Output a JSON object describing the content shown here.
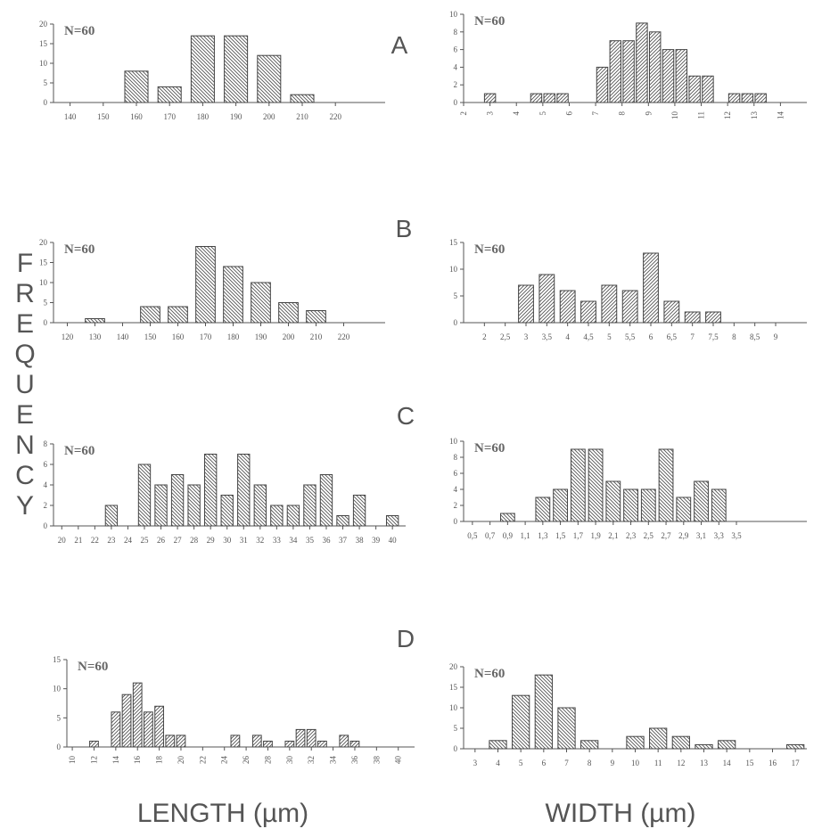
{
  "figure": {
    "y_axis_title": "FREQUENCY",
    "x_axis_title_left": "LENGTH (µm)",
    "x_axis_title_right": "WIDTH (µm)",
    "panel_letters": [
      "A",
      "B",
      "C",
      "D"
    ]
  },
  "chart_data": [
    {
      "id": "A-length",
      "type": "bar",
      "n_label": "N=60",
      "ylim": [
        0,
        20
      ],
      "yticks": [
        "0",
        "5",
        "10",
        "15",
        "20"
      ],
      "xlim": [
        135,
        235
      ],
      "xticks": [
        {
          "v": 140,
          "l": "140"
        },
        {
          "v": 150,
          "l": "150"
        },
        {
          "v": 160,
          "l": "160"
        },
        {
          "v": 170,
          "l": "170"
        },
        {
          "v": 180,
          "l": "180"
        },
        {
          "v": 190,
          "l": "190"
        },
        {
          "v": 200,
          "l": "200"
        },
        {
          "v": 210,
          "l": "210"
        },
        {
          "v": 220,
          "l": "220"
        }
      ],
      "rotate_xticks": false,
      "hatch": "\\",
      "bars": [
        {
          "x": 160,
          "y": 8
        },
        {
          "x": 170,
          "y": 4
        },
        {
          "x": 180,
          "y": 17
        },
        {
          "x": 190,
          "y": 17
        },
        {
          "x": 200,
          "y": 12
        },
        {
          "x": 210,
          "y": 2
        }
      ],
      "bar_width": 7
    },
    {
      "id": "A-width",
      "type": "bar",
      "n_label": "N=60",
      "ylim": [
        0,
        10
      ],
      "yticks": [
        "0",
        "2",
        "4",
        "6",
        "8",
        "10"
      ],
      "xlim": [
        2,
        15
      ],
      "xticks": [
        {
          "v": 2,
          "l": "2"
        },
        {
          "v": 3,
          "l": "3"
        },
        {
          "v": 4,
          "l": "4"
        },
        {
          "v": 5,
          "l": "5"
        },
        {
          "v": 6,
          "l": "6"
        },
        {
          "v": 7,
          "l": "7"
        },
        {
          "v": 8,
          "l": "8"
        },
        {
          "v": 9,
          "l": "9"
        },
        {
          "v": 10,
          "l": "10"
        },
        {
          "v": 11,
          "l": "11"
        },
        {
          "v": 12,
          "l": "12"
        },
        {
          "v": 13,
          "l": "13"
        },
        {
          "v": 14,
          "l": "14"
        }
      ],
      "rotate_xticks": true,
      "hatch": "/",
      "bars": [
        {
          "x": 3,
          "y": 1
        },
        {
          "x": 4.75,
          "y": 1
        },
        {
          "x": 5.25,
          "y": 1
        },
        {
          "x": 5.75,
          "y": 1
        },
        {
          "x": 7.25,
          "y": 4
        },
        {
          "x": 7.75,
          "y": 7
        },
        {
          "x": 8.25,
          "y": 7
        },
        {
          "x": 8.75,
          "y": 9
        },
        {
          "x": 9.25,
          "y": 8
        },
        {
          "x": 9.75,
          "y": 6
        },
        {
          "x": 10.25,
          "y": 6
        },
        {
          "x": 10.75,
          "y": 3
        },
        {
          "x": 11.25,
          "y": 3
        },
        {
          "x": 12.25,
          "y": 1
        },
        {
          "x": 12.75,
          "y": 1
        },
        {
          "x": 13.25,
          "y": 1
        }
      ],
      "bar_width": 0.42
    },
    {
      "id": "B-length",
      "type": "bar",
      "n_label": "N=60",
      "ylim": [
        0,
        20
      ],
      "yticks": [
        "0",
        "5",
        "10",
        "15",
        "20"
      ],
      "xlim": [
        115,
        235
      ],
      "xticks": [
        {
          "v": 120,
          "l": "120"
        },
        {
          "v": 130,
          "l": "130"
        },
        {
          "v": 140,
          "l": "140"
        },
        {
          "v": 150,
          "l": "150"
        },
        {
          "v": 160,
          "l": "160"
        },
        {
          "v": 170,
          "l": "170"
        },
        {
          "v": 180,
          "l": "180"
        },
        {
          "v": 190,
          "l": "190"
        },
        {
          "v": 200,
          "l": "200"
        },
        {
          "v": 210,
          "l": "210"
        },
        {
          "v": 220,
          "l": "220"
        }
      ],
      "rotate_xticks": false,
      "hatch": "\\",
      "bars": [
        {
          "x": 130,
          "y": 1
        },
        {
          "x": 150,
          "y": 4
        },
        {
          "x": 160,
          "y": 4
        },
        {
          "x": 170,
          "y": 19
        },
        {
          "x": 180,
          "y": 14
        },
        {
          "x": 190,
          "y": 10
        },
        {
          "x": 200,
          "y": 5
        },
        {
          "x": 210,
          "y": 3
        }
      ],
      "bar_width": 7
    },
    {
      "id": "B-width",
      "type": "bar",
      "n_label": "N=60",
      "ylim": [
        0,
        15
      ],
      "yticks": [
        "0",
        "5",
        "10",
        "15"
      ],
      "xlim": [
        1.5,
        9.75
      ],
      "xticks": [
        {
          "v": 2,
          "l": "2"
        },
        {
          "v": 2.5,
          "l": "2,5"
        },
        {
          "v": 3,
          "l": "3"
        },
        {
          "v": 3.5,
          "l": "3,5"
        },
        {
          "v": 4,
          "l": "4"
        },
        {
          "v": 4.5,
          "l": "4,5"
        },
        {
          "v": 5,
          "l": "5"
        },
        {
          "v": 5.5,
          "l": "5,5"
        },
        {
          "v": 6,
          "l": "6"
        },
        {
          "v": 6.5,
          "l": "6,5"
        },
        {
          "v": 7,
          "l": "7"
        },
        {
          "v": 7.5,
          "l": "7,5"
        },
        {
          "v": 8,
          "l": "8"
        },
        {
          "v": 8.5,
          "l": "8,5"
        },
        {
          "v": 9,
          "l": "9"
        }
      ],
      "rotate_xticks": false,
      "hatch": "/",
      "bars": [
        {
          "x": 3,
          "y": 7
        },
        {
          "x": 3.5,
          "y": 9
        },
        {
          "x": 4,
          "y": 6
        },
        {
          "x": 4.5,
          "y": 4
        },
        {
          "x": 5,
          "y": 7
        },
        {
          "x": 5.5,
          "y": 6
        },
        {
          "x": 6,
          "y": 13
        },
        {
          "x": 6.5,
          "y": 4
        },
        {
          "x": 7,
          "y": 2
        },
        {
          "x": 7.5,
          "y": 2
        }
      ],
      "bar_width": 0.36
    },
    {
      "id": "C-length",
      "type": "bar",
      "n_label": "N=60",
      "ylim": [
        0,
        8
      ],
      "yticks": [
        "0",
        "2",
        "4",
        "6",
        "8"
      ],
      "xlim": [
        19.5,
        40.8
      ],
      "xticks": [
        {
          "v": 20,
          "l": "20"
        },
        {
          "v": 21,
          "l": "21"
        },
        {
          "v": 22,
          "l": "22"
        },
        {
          "v": 23,
          "l": "23"
        },
        {
          "v": 24,
          "l": "24"
        },
        {
          "v": 25,
          "l": "25"
        },
        {
          "v": 26,
          "l": "26"
        },
        {
          "v": 27,
          "l": "27"
        },
        {
          "v": 28,
          "l": "28"
        },
        {
          "v": 29,
          "l": "29"
        },
        {
          "v": 30,
          "l": "30"
        },
        {
          "v": 31,
          "l": "31"
        },
        {
          "v": 32,
          "l": "32"
        },
        {
          "v": 33,
          "l": "33"
        },
        {
          "v": 34,
          "l": "34"
        },
        {
          "v": 35,
          "l": "35"
        },
        {
          "v": 36,
          "l": "36"
        },
        {
          "v": 37,
          "l": "37"
        },
        {
          "v": 38,
          "l": "38"
        },
        {
          "v": 39,
          "l": "39"
        },
        {
          "v": 40,
          "l": "40"
        }
      ],
      "rotate_xticks": false,
      "hatch": "\\",
      "bars": [
        {
          "x": 23,
          "y": 2
        },
        {
          "x": 25,
          "y": 6
        },
        {
          "x": 26,
          "y": 4
        },
        {
          "x": 27,
          "y": 5
        },
        {
          "x": 28,
          "y": 4
        },
        {
          "x": 29,
          "y": 7
        },
        {
          "x": 30,
          "y": 3
        },
        {
          "x": 31,
          "y": 7
        },
        {
          "x": 32,
          "y": 4
        },
        {
          "x": 33,
          "y": 2
        },
        {
          "x": 34,
          "y": 2
        },
        {
          "x": 35,
          "y": 4
        },
        {
          "x": 36,
          "y": 5
        },
        {
          "x": 37,
          "y": 1
        },
        {
          "x": 38,
          "y": 3
        },
        {
          "x": 40,
          "y": 1
        }
      ],
      "bar_width": 0.72
    },
    {
      "id": "C-width",
      "type": "bar",
      "n_label": "N=60",
      "ylim": [
        0,
        10
      ],
      "yticks": [
        "0",
        "2",
        "4",
        "6",
        "8",
        "10"
      ],
      "xlim": [
        0.4,
        4.3
      ],
      "xticks": [
        {
          "v": 0.5,
          "l": "0,5"
        },
        {
          "v": 0.7,
          "l": "0,7"
        },
        {
          "v": 0.9,
          "l": "0,9"
        },
        {
          "v": 1.1,
          "l": "1,1"
        },
        {
          "v": 1.3,
          "l": "1,3"
        },
        {
          "v": 1.5,
          "l": "1,5"
        },
        {
          "v": 1.7,
          "l": "1,7"
        },
        {
          "v": 1.9,
          "l": "1,9"
        },
        {
          "v": 2.1,
          "l": "2,1"
        },
        {
          "v": 2.3,
          "l": "2,3"
        },
        {
          "v": 2.5,
          "l": "2,5"
        },
        {
          "v": 2.7,
          "l": "2,7"
        },
        {
          "v": 2.9,
          "l": "2,9"
        },
        {
          "v": 3.1,
          "l": "3,1"
        },
        {
          "v": 3.3,
          "l": "3,3"
        },
        {
          "v": 3.5,
          "l": "3,5"
        }
      ],
      "rotate_xticks": false,
      "hatch": "\\",
      "bars": [
        {
          "x": 0.9,
          "y": 1
        },
        {
          "x": 1.3,
          "y": 3
        },
        {
          "x": 1.5,
          "y": 4
        },
        {
          "x": 1.7,
          "y": 9
        },
        {
          "x": 1.9,
          "y": 9
        },
        {
          "x": 2.1,
          "y": 5
        },
        {
          "x": 2.3,
          "y": 4
        },
        {
          "x": 2.5,
          "y": 4
        },
        {
          "x": 2.7,
          "y": 9
        },
        {
          "x": 2.9,
          "y": 3
        },
        {
          "x": 3.1,
          "y": 5
        },
        {
          "x": 3.3,
          "y": 4
        }
      ],
      "bar_width": 0.16
    },
    {
      "id": "D-length",
      "type": "bar",
      "n_label": "N=60",
      "ylim": [
        0,
        15
      ],
      "yticks": [
        "0",
        "5",
        "10",
        "15"
      ],
      "xlim": [
        9.5,
        41.5
      ],
      "xticks": [
        {
          "v": 10,
          "l": "10"
        },
        {
          "v": 12,
          "l": "12"
        },
        {
          "v": 14,
          "l": "14"
        },
        {
          "v": 16,
          "l": "16"
        },
        {
          "v": 18,
          "l": "18"
        },
        {
          "v": 20,
          "l": "20"
        },
        {
          "v": 22,
          "l": "22"
        },
        {
          "v": 24,
          "l": "24"
        },
        {
          "v": 26,
          "l": "26"
        },
        {
          "v": 28,
          "l": "28"
        },
        {
          "v": 30,
          "l": "30"
        },
        {
          "v": 32,
          "l": "32"
        },
        {
          "v": 34,
          "l": "34"
        },
        {
          "v": 36,
          "l": "36"
        },
        {
          "v": 38,
          "l": "38"
        },
        {
          "v": 40,
          "l": "40"
        }
      ],
      "rotate_xticks": true,
      "hatch": "/",
      "bars": [
        {
          "x": 12,
          "y": 1
        },
        {
          "x": 14,
          "y": 6
        },
        {
          "x": 15,
          "y": 9
        },
        {
          "x": 16,
          "y": 11
        },
        {
          "x": 17,
          "y": 6
        },
        {
          "x": 18,
          "y": 7
        },
        {
          "x": 19,
          "y": 2
        },
        {
          "x": 20,
          "y": 2
        },
        {
          "x": 25,
          "y": 2
        },
        {
          "x": 27,
          "y": 2
        },
        {
          "x": 28,
          "y": 1
        },
        {
          "x": 30,
          "y": 1
        },
        {
          "x": 31,
          "y": 3
        },
        {
          "x": 32,
          "y": 3
        },
        {
          "x": 33,
          "y": 1
        },
        {
          "x": 35,
          "y": 2
        },
        {
          "x": 36,
          "y": 1
        }
      ],
      "bar_width": 0.8
    },
    {
      "id": "D-width",
      "type": "bar",
      "n_label": "N=60",
      "ylim": [
        0,
        20
      ],
      "yticks": [
        "0",
        "5",
        "10",
        "15",
        "20"
      ],
      "xlim": [
        2.5,
        17.5
      ],
      "xticks": [
        {
          "v": 3,
          "l": "3"
        },
        {
          "v": 4,
          "l": "4"
        },
        {
          "v": 5,
          "l": "5"
        },
        {
          "v": 6,
          "l": "6"
        },
        {
          "v": 7,
          "l": "7"
        },
        {
          "v": 8,
          "l": "8"
        },
        {
          "v": 9,
          "l": "9"
        },
        {
          "v": 10,
          "l": "10"
        },
        {
          "v": 11,
          "l": "11"
        },
        {
          "v": 12,
          "l": "12"
        },
        {
          "v": 13,
          "l": "13"
        },
        {
          "v": 14,
          "l": "14"
        },
        {
          "v": 15,
          "l": "15"
        },
        {
          "v": 16,
          "l": "16"
        },
        {
          "v": 17,
          "l": "17"
        }
      ],
      "rotate_xticks": false,
      "hatch": "\\",
      "bars": [
        {
          "x": 4,
          "y": 2
        },
        {
          "x": 5,
          "y": 13
        },
        {
          "x": 6,
          "y": 18
        },
        {
          "x": 7,
          "y": 10
        },
        {
          "x": 8,
          "y": 2
        },
        {
          "x": 10,
          "y": 3
        },
        {
          "x": 11,
          "y": 5
        },
        {
          "x": 12,
          "y": 3
        },
        {
          "x": 13,
          "y": 1
        },
        {
          "x": 14,
          "y": 2
        },
        {
          "x": 17,
          "y": 1
        }
      ],
      "bar_width": 0.75
    }
  ]
}
